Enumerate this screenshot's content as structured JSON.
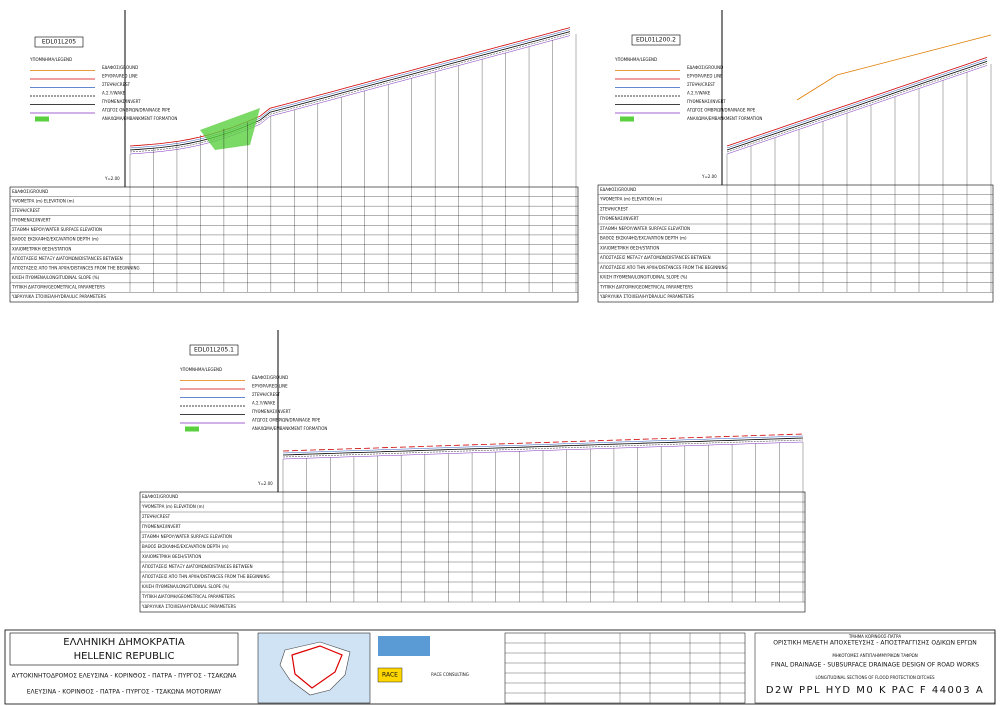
{
  "legend_title": "ΥΠΟΜΝΗΜΑ/LEGEND",
  "legend": [
    "ΕΔΑΦΟΣ/GROUND",
    "ΕΡΥΘΡΑ/RED LINE",
    "ΣΤΕΨΗ/CREST",
    "Α.Σ.Υ/WAKE",
    "ΠΥΘΜΕΝΑΣ/INVERT",
    "ΑΓΩΓΟΣ ΟΜΒΡΙΩΝ/DRAINAGE PIPE",
    "ΑΝΑΧΩΜΑ/EMBANKMENT FORMATION"
  ],
  "row_labels": [
    "ΕΔΑΦΟΣ/GROUND",
    "ΥΨΟΜΕΤΡΑ (m) ELEVATION (m)",
    "ΣΤΕΨΗ/CREST",
    "ΠΥΘΜΕΝΑΣ/INVERT",
    "ΣΤΑΘΜΗ ΝΕΡΟΥ/WATER SURFACE ELEVATION",
    "ΒΑΘΟΣ ΕΚΣΚΑΦΗΣ/EXCAVATION DEPTH (m)",
    "ΧΙΛΙΟΜΕΤΡΙΚΗ ΘΕΣΗ/STATION",
    "ΑΠΟΣΤΑΣΕΙΣ ΜΕΤΑΞΥ ΔΙΑΤΟΜΩΝ/DISTANCES BETWEEN",
    "ΑΠΟΣΤΑΣΕΙΣ ΑΠΟ ΤΗΝ ΑΡΧΗ/DISTANCES FROM THE BEGINNING",
    "ΚΛΙΣΗ ΠΥΘΜΕΝΑ/LONGITUDINAL SLOPE (%)",
    "ΤΥΠΙΚΗ ΔΙΑΤΟΜΗ/GEOMETRICAL PARAMETERS",
    "ΥΔΡΑΥΛΙΚΑ ΣΤΟΙΧΕΙΑ/HYDRAULIC PARAMETERS"
  ],
  "datum": "Y=2.00",
  "panels": [
    {
      "label": "EDL01L205"
    },
    {
      "label": "EDL01L200.2"
    },
    {
      "label": "EDL01L205.1"
    }
  ],
  "title_block": {
    "republic_gr": "ΕΛΛΗΝΙΚΗ ΔΗΜΟΚΡΑΤΙΑ",
    "republic_en": "HELLENIC REPUBLIC",
    "motorway_gr": "ΑΥΤΟΚΙΝΗΤΟΔΡΟΜΟΣ ΕΛΕΥΣΙΝΑ - ΚΟΡΙΝΘΟΣ - ΠΑΤΡΑ - ΠΥΡΓΟΣ - ΤΣΑΚΩΝΑ",
    "motorway_en": "ΕΛΕΥΣΙΝΑ - ΚΟΡΙΝΘΟΣ - ΠΑΤΡΑ - ΠΥΡΓΟΣ - ΤΣΑΚΩΝΑ MOTORWAY",
    "logo1": "RACE",
    "logo2": "RACE CONSULTING",
    "section": "ΤΜΗΜΑ ΚΟΡΙΝΘΟΣ-ΠΑΤΡΑ",
    "study_gr": "ΟΡΙΣΤΙΚΗ ΜΕΛΕΤΗ ΑΠΟΧΕΤΕΥΣΗΣ - ΑΠΟΣΤΡΑΓΓΙΣΗΣ ΟΔΙΚΩΝ ΕΡΓΩΝ",
    "drawing_gr": "ΜΗΚΟΤΟΜΕΣ ΑΝΤΙΠΛΗΜΜΥΡΙΚΩΝ ΤΑΦΡΩΝ",
    "study_en": "FINAL DRAINAGE - SUBSURFACE DRAINAGE DESIGN OF ROAD WORKS",
    "drawing_en": "LONGITUDINAL SECTIONS OF FLOOD PROTECTION DITCHES",
    "code": "D2W PPL HYD M0 K PAC F 44003 A"
  }
}
